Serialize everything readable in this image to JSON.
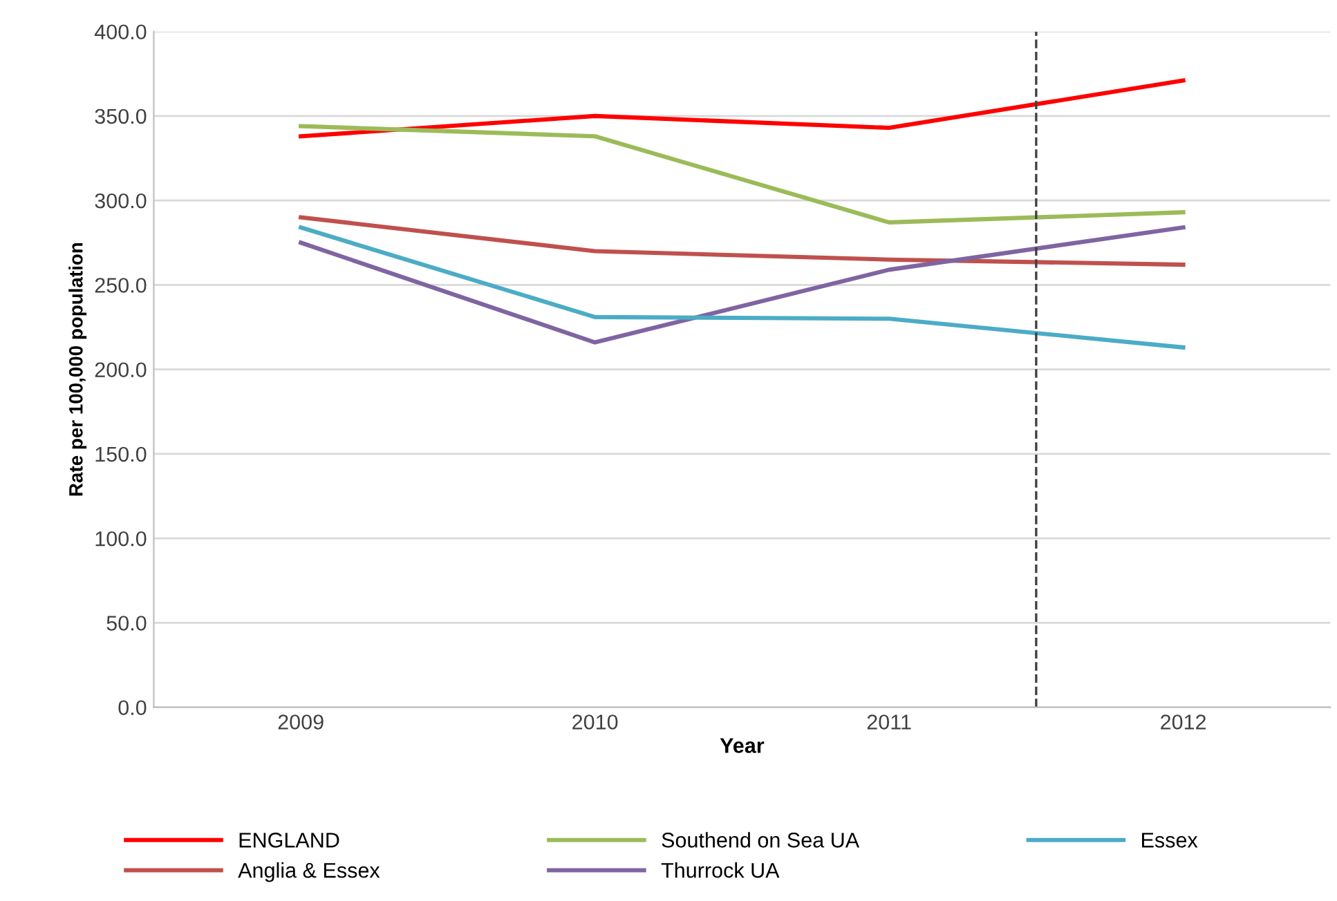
{
  "chart_data": {
    "type": "line",
    "xlabel": "Year",
    "ylabel": "Rate per 100,000 population",
    "x": [
      2009,
      2010,
      2011,
      2012
    ],
    "xlim": [
      2008.5,
      2012.5
    ],
    "xticks": [
      2009,
      2010,
      2011,
      2012
    ],
    "ylim": [
      0,
      400
    ],
    "yticks": [
      {
        "value": 0,
        "label": "0.0"
      },
      {
        "value": 50,
        "label": "50.0"
      },
      {
        "value": 100,
        "label": "100.0"
      },
      {
        "value": 150,
        "label": "150.0"
      },
      {
        "value": 200,
        "label": "200.0"
      },
      {
        "value": 250,
        "label": "250.0"
      },
      {
        "value": 300,
        "label": "300.0"
      },
      {
        "value": 350,
        "label": "350.0"
      },
      {
        "value": 400,
        "label": "400.0"
      }
    ],
    "grid": "y",
    "legend": "bottom",
    "marker": "none",
    "line_style": "solid",
    "ref_lines": [
      {
        "axis": "x",
        "value": 2011.5,
        "color": "#404040",
        "line_style": "dashed"
      }
    ],
    "series": [
      {
        "name": "ENGLAND",
        "color": "#ff0000",
        "values": [
          338,
          350,
          343,
          371
        ]
      },
      {
        "name": "Anglia & Essex",
        "color": "#c0504d",
        "values": [
          290,
          270,
          265,
          262
        ]
      },
      {
        "name": "Southend on Sea UA",
        "color": "#9bbb59",
        "values": [
          344,
          338,
          287,
          293
        ]
      },
      {
        "name": "Thurrock UA",
        "color": "#8064a2",
        "values": [
          275,
          216,
          259,
          284
        ]
      },
      {
        "name": "Essex",
        "color": "#4bacc6",
        "values": [
          284,
          231,
          230,
          213
        ]
      }
    ]
  }
}
